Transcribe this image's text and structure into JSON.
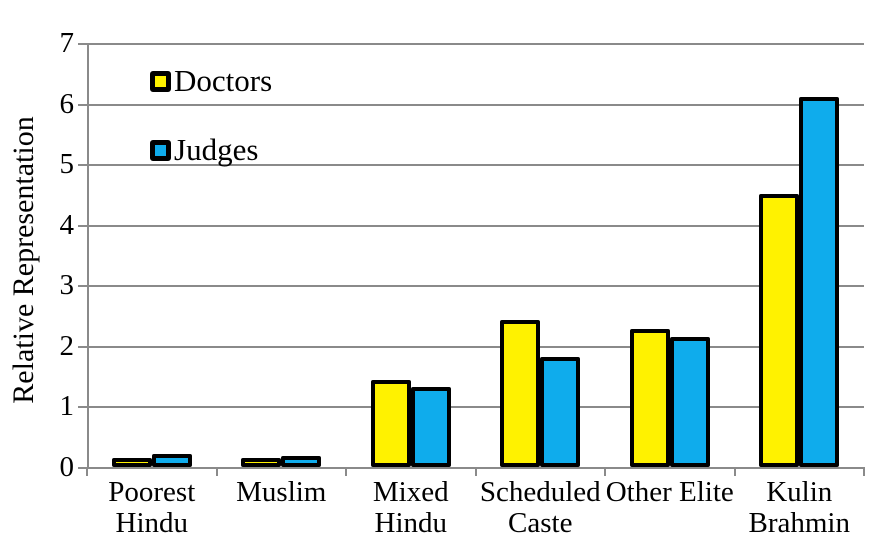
{
  "chart_data": {
    "type": "bar",
    "title": "",
    "xlabel": "",
    "ylabel": "Relative Representation",
    "ylim": [
      0,
      7
    ],
    "yticks": [
      0,
      1,
      2,
      3,
      4,
      5,
      6,
      7
    ],
    "grid": true,
    "legend_position": "top-left",
    "categories": [
      "Poorest Hindu",
      "Muslim",
      "Mixed Hindu",
      "Scheduled Caste",
      "Other Elite",
      "Kulin Brahmin"
    ],
    "category_label_lines": [
      [
        "Poorest",
        "Hindu"
      ],
      [
        "Muslim"
      ],
      [
        "Mixed",
        "Hindu"
      ],
      [
        "Scheduled",
        "Caste"
      ],
      [
        "Other Elite"
      ],
      [
        "Kulin",
        "Brahmin"
      ]
    ],
    "series": [
      {
        "name": "Doctors",
        "color": "#FFF200",
        "values": [
          0.08,
          0.12,
          1.4,
          2.4,
          2.24,
          4.47
        ]
      },
      {
        "name": "Judges",
        "color": "#0FACEC",
        "values": [
          0.18,
          0.15,
          1.28,
          1.78,
          2.11,
          6.07
        ]
      }
    ],
    "colors": {
      "gridline": "#8a8a8a",
      "bar_border": "#000000",
      "text": "#000000",
      "background": "#ffffff"
    }
  }
}
